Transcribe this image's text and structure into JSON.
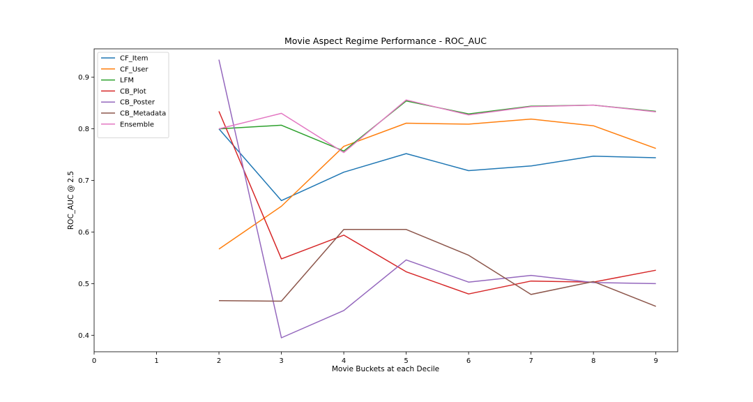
{
  "chart_data": {
    "type": "line",
    "title": "Movie Aspect Regime Performance - ROC_AUC",
    "xlabel": "Movie Buckets at each Decile",
    "ylabel": "ROC_AUC @ 2.5",
    "xlim": [
      0,
      9.35
    ],
    "ylim": [
      0.368,
      0.955
    ],
    "xticks": [
      0,
      1,
      2,
      3,
      4,
      5,
      6,
      7,
      8,
      9
    ],
    "yticks": [
      0.4,
      0.5,
      0.6,
      0.7,
      0.8,
      0.9
    ],
    "legend_position": "upper-left",
    "grid": false,
    "x": [
      2,
      3,
      4,
      5,
      6,
      7,
      8,
      9
    ],
    "series": [
      {
        "name": "CF_Item",
        "color": "#1f77b4",
        "values": [
          0.8,
          0.661,
          0.716,
          0.752,
          0.719,
          0.728,
          0.747,
          0.744
        ]
      },
      {
        "name": "CF_User",
        "color": "#ff7f0e",
        "values": [
          0.567,
          0.65,
          0.766,
          0.811,
          0.809,
          0.819,
          0.806,
          0.762
        ]
      },
      {
        "name": "LFM",
        "color": "#2ca02c",
        "values": [
          0.8,
          0.807,
          0.757,
          0.854,
          0.829,
          0.844,
          0.846,
          0.834
        ]
      },
      {
        "name": "CB_Plot",
        "color": "#d62728",
        "values": [
          0.834,
          0.548,
          0.594,
          0.523,
          0.48,
          0.505,
          0.503,
          0.526
        ]
      },
      {
        "name": "CB_Poster",
        "color": "#9467bd",
        "values": [
          0.934,
          0.395,
          0.448,
          0.546,
          0.503,
          0.516,
          0.502,
          0.5
        ]
      },
      {
        "name": "CB_Metadata",
        "color": "#8c564b",
        "values": [
          0.467,
          0.466,
          0.605,
          0.605,
          0.555,
          0.479,
          0.504,
          0.456
        ]
      },
      {
        "name": "Ensemble",
        "color": "#e377c2",
        "values": [
          0.8,
          0.83,
          0.754,
          0.856,
          0.827,
          0.843,
          0.846,
          0.833
        ]
      }
    ]
  }
}
